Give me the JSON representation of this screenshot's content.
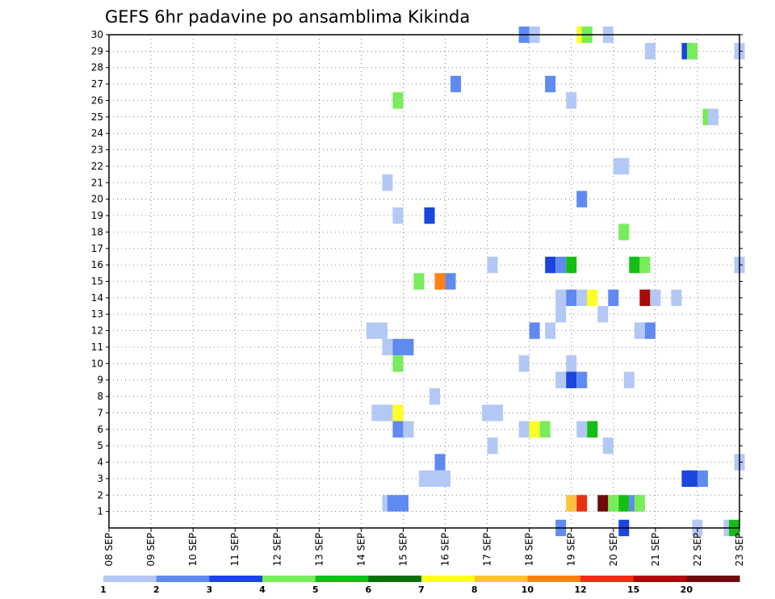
{
  "chart_data": {
    "type": "heatmap",
    "title": "GEFS 6hr padavine po ansamblima Kikinda",
    "xlabel": "",
    "ylabel": "",
    "x_tick_labels": [
      "08 SEP",
      "09 SEP",
      "10 SEP",
      "11 SEP",
      "12 SEP",
      "13 SEP",
      "14 SEP",
      "15 SEP",
      "16 SEP",
      "17 SEP",
      "18 SEP",
      "19 SEP",
      "20 SEP",
      "21 SEP",
      "22 SEP",
      "23 SEP"
    ],
    "y_tick_labels": [
      "1",
      "2",
      "3",
      "4",
      "5",
      "6",
      "7",
      "8",
      "9",
      "10",
      "11",
      "12",
      "13",
      "14",
      "15",
      "16",
      "17",
      "18",
      "19",
      "20",
      "21",
      "22",
      "23",
      "24",
      "25",
      "26",
      "27",
      "28",
      "29",
      "30"
    ],
    "xlim": [
      0,
      60
    ],
    "ylim": [
      0,
      30
    ],
    "time_step_hours": 6,
    "grid": true,
    "legend_placement": "bottom",
    "color_scale": {
      "labels": [
        "1",
        "2",
        "3",
        "4",
        "5",
        "6",
        "7",
        "8",
        "10",
        "12",
        "15",
        "20",
        ""
      ],
      "colors": [
        "#b4c8f5",
        "#5f8af0",
        "#1a46dc",
        "#78ec5a",
        "#14be14",
        "#0a700a",
        "#ffff28",
        "#ffc040",
        "#ff8214",
        "#e63214",
        "#aa0a0a",
        "#6e0a0a"
      ]
    },
    "cells": [
      {
        "x": 39.5,
        "y": 30,
        "c": 1
      },
      {
        "x": 40.5,
        "y": 30,
        "c": 0
      },
      {
        "x": 45,
        "y": 30,
        "c": 6
      },
      {
        "x": 45.5,
        "y": 30,
        "c": 3
      },
      {
        "x": 47.5,
        "y": 30,
        "c": 0
      },
      {
        "x": 51.5,
        "y": 29,
        "c": 0
      },
      {
        "x": 55,
        "y": 29,
        "c": 2
      },
      {
        "x": 55.5,
        "y": 29,
        "c": 3
      },
      {
        "x": 60,
        "y": 29,
        "c": 0
      },
      {
        "x": 33,
        "y": 27,
        "c": 1
      },
      {
        "x": 42,
        "y": 27,
        "c": 1
      },
      {
        "x": 27.5,
        "y": 26,
        "c": 3
      },
      {
        "x": 44,
        "y": 26,
        "c": 0
      },
      {
        "x": 57,
        "y": 25,
        "c": 3
      },
      {
        "x": 57.5,
        "y": 25,
        "c": 0
      },
      {
        "x": 48.5,
        "y": 22,
        "c": 0
      },
      {
        "x": 49,
        "y": 22,
        "c": 0
      },
      {
        "x": 26.5,
        "y": 21,
        "c": 0
      },
      {
        "x": 45,
        "y": 20,
        "c": 1
      },
      {
        "x": 27.5,
        "y": 19,
        "c": 0
      },
      {
        "x": 30.5,
        "y": 19,
        "c": 2
      },
      {
        "x": 49,
        "y": 18,
        "c": 3
      },
      {
        "x": 36.5,
        "y": 16,
        "c": 0
      },
      {
        "x": 42,
        "y": 16,
        "c": 2
      },
      {
        "x": 43,
        "y": 16,
        "c": 1
      },
      {
        "x": 44,
        "y": 16,
        "c": 4
      },
      {
        "x": 50,
        "y": 16,
        "c": 4
      },
      {
        "x": 51,
        "y": 16,
        "c": 3
      },
      {
        "x": 60,
        "y": 16,
        "c": 0
      },
      {
        "x": 29.5,
        "y": 15,
        "c": 3
      },
      {
        "x": 31.5,
        "y": 15,
        "c": 8
      },
      {
        "x": 32.5,
        "y": 15,
        "c": 1
      },
      {
        "x": 43,
        "y": 14,
        "c": 0
      },
      {
        "x": 44,
        "y": 14,
        "c": 1
      },
      {
        "x": 45,
        "y": 14,
        "c": 0
      },
      {
        "x": 46,
        "y": 14,
        "c": 6
      },
      {
        "x": 48,
        "y": 14,
        "c": 1
      },
      {
        "x": 51,
        "y": 14,
        "c": 10
      },
      {
        "x": 52,
        "y": 14,
        "c": 0
      },
      {
        "x": 54,
        "y": 14,
        "c": 0
      },
      {
        "x": 43,
        "y": 13,
        "c": 0
      },
      {
        "x": 47,
        "y": 13,
        "c": 0
      },
      {
        "x": 25,
        "y": 12,
        "c": 0
      },
      {
        "x": 26,
        "y": 12,
        "c": 0
      },
      {
        "x": 40.5,
        "y": 12,
        "c": 1
      },
      {
        "x": 42,
        "y": 12,
        "c": 0
      },
      {
        "x": 50.5,
        "y": 12,
        "c": 0
      },
      {
        "x": 51.5,
        "y": 12,
        "c": 1
      },
      {
        "x": 26.5,
        "y": 11,
        "c": 0
      },
      {
        "x": 27.5,
        "y": 11,
        "c": 1
      },
      {
        "x": 28.5,
        "y": 11,
        "c": 1
      },
      {
        "x": 27.5,
        "y": 10,
        "c": 3
      },
      {
        "x": 39.5,
        "y": 10,
        "c": 0
      },
      {
        "x": 44,
        "y": 10,
        "c": 0
      },
      {
        "x": 43,
        "y": 9,
        "c": 0
      },
      {
        "x": 44,
        "y": 9,
        "c": 2
      },
      {
        "x": 45,
        "y": 9,
        "c": 1
      },
      {
        "x": 49.5,
        "y": 9,
        "c": 0
      },
      {
        "x": 31,
        "y": 8,
        "c": 0
      },
      {
        "x": 25.5,
        "y": 7,
        "c": 0
      },
      {
        "x": 26.5,
        "y": 7,
        "c": 0
      },
      {
        "x": 27.5,
        "y": 7,
        "c": 6
      },
      {
        "x": 36,
        "y": 7,
        "c": 0
      },
      {
        "x": 37,
        "y": 7,
        "c": 0
      },
      {
        "x": 27.5,
        "y": 6,
        "c": 1
      },
      {
        "x": 28.5,
        "y": 6,
        "c": 0
      },
      {
        "x": 39.5,
        "y": 6,
        "c": 0
      },
      {
        "x": 40.5,
        "y": 6,
        "c": 6
      },
      {
        "x": 41.5,
        "y": 6,
        "c": 3
      },
      {
        "x": 45,
        "y": 6,
        "c": 0
      },
      {
        "x": 46,
        "y": 6,
        "c": 4
      },
      {
        "x": 36.5,
        "y": 5,
        "c": 0
      },
      {
        "x": 47.5,
        "y": 5,
        "c": 0
      },
      {
        "x": 31.5,
        "y": 4,
        "c": 1
      },
      {
        "x": 60,
        "y": 4,
        "c": 0
      },
      {
        "x": 30,
        "y": 3,
        "c": 0
      },
      {
        "x": 31,
        "y": 3,
        "c": 0
      },
      {
        "x": 32,
        "y": 3,
        "c": 0
      },
      {
        "x": 55,
        "y": 3,
        "c": 2
      },
      {
        "x": 55.5,
        "y": 3,
        "c": 2
      },
      {
        "x": 56.5,
        "y": 3,
        "c": 1
      },
      {
        "x": 26.5,
        "y": 1.5,
        "c": 0
      },
      {
        "x": 27,
        "y": 1.5,
        "c": 1
      },
      {
        "x": 28,
        "y": 1.5,
        "c": 1
      },
      {
        "x": 44,
        "y": 1.5,
        "c": 7
      },
      {
        "x": 45,
        "y": 1.5,
        "c": 9
      },
      {
        "x": 47,
        "y": 1.5,
        "c": 11
      },
      {
        "x": 48,
        "y": 1.5,
        "c": 3
      },
      {
        "x": 49,
        "y": 1.5,
        "c": 4
      },
      {
        "x": 50,
        "y": 1.5,
        "c": 1
      },
      {
        "x": 50.5,
        "y": 1.5,
        "c": 3
      },
      {
        "x": 43,
        "y": 0,
        "c": 1
      },
      {
        "x": 49,
        "y": 0,
        "c": 2
      },
      {
        "x": 56,
        "y": 0,
        "c": 0
      },
      {
        "x": 59,
        "y": 0,
        "c": 0
      },
      {
        "x": 59.5,
        "y": 0,
        "c": 4
      }
    ]
  }
}
